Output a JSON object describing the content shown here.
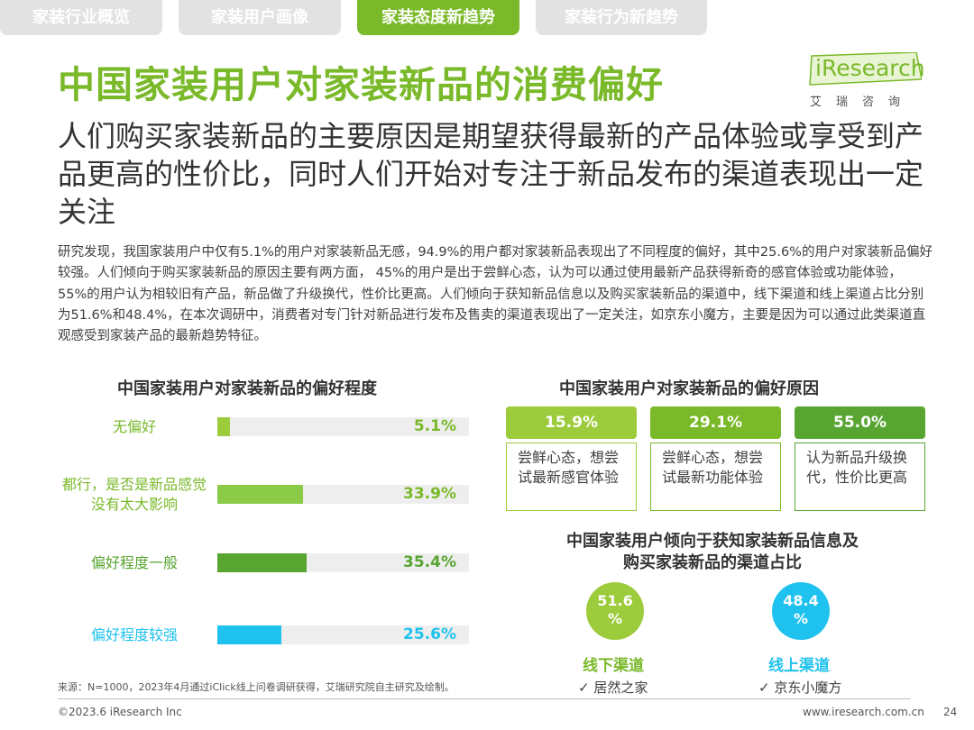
{
  "tabs": [
    {
      "label": "家装行业概览"
    },
    {
      "label": "家装用户画像"
    },
    {
      "label": "家装态度新趋势"
    },
    {
      "label": "家装行为新趋势"
    }
  ],
  "title": "中国家装用户对家装新品的消费偏好",
  "logo": {
    "brand": "iResearch",
    "sub": "艾瑞咨询"
  },
  "subtitle": "人们购买家装新品的主要原因是期望获得最新的产品体验或享受到产品更高的性价比，同时人们开始对专注于新品发布的渠道表现出一定关注",
  "body": "研究发现，我国家装用户中仅有5.1%的用户对家装新品无感，94.9%的用户都对家装新品表现出了不同程度的偏好，其中25.6%的用户对家装新品偏好较强。人们倾向于购买家装新品的原因主要有两方面， 45%的用户是出于尝鲜心态，认为可以通过使用最新产品获得新奇的感官体验或功能体验， 55%的用户认为相较旧有产品，新品做了升级换代，性价比更高。人们倾向于获知新品信息以及购买家装新品的渠道中，线下渠道和线上渠道占比分别为51.6%和48.4%，在本次调研中，消费者对专门针对新品进行发布及售卖的渠道表现出了一定关注，如京东小魔方，主要是因为可以通过此类渠道直观感受到家装产品的最新趋势特征。",
  "colors": {
    "green": "#7ab929",
    "dark_green": "#58a532",
    "lime": "#9ccb3b",
    "light_green": "#8ccb47",
    "cyan": "#1fc2ee",
    "tab_gray": "#e2e2e2"
  },
  "chart_data": [
    {
      "type": "bar",
      "title": "中国家装用户对家装新品的偏好程度",
      "categories": [
        "无偏好",
        "都行，是否是新品感觉没有太大影响",
        "偏好程度一般",
        "偏好程度较强"
      ],
      "values": [
        5.1,
        33.9,
        35.4,
        25.6
      ],
      "value_labels": [
        "5.1%",
        "33.9%",
        "35.4%",
        "25.6%"
      ],
      "colors": [
        "#9ccb3b",
        "#8ccb47",
        "#58a532",
        "#1fc2ee"
      ],
      "xlim": [
        0,
        100
      ]
    },
    {
      "type": "table",
      "title": "中国家装用户对家装新品的偏好原因",
      "items": [
        {
          "value": 15.9,
          "label": "15.9%",
          "text": "尝鲜心态，想尝试最新感官体验",
          "color": "#9ccb3b"
        },
        {
          "value": 29.1,
          "label": "29.1%",
          "text": "尝鲜心态，想尝试最新功能体验",
          "color": "#7ab929"
        },
        {
          "value": 55.0,
          "label": "55.0%",
          "text": "认为新品升级换代，性价比更高",
          "color": "#58a532"
        }
      ]
    },
    {
      "type": "pie",
      "title_line1": "中国家装用户倾向于获知家装新品信息及",
      "title_line2": "购买家装新品的渠道占比",
      "items": [
        {
          "value": 51.6,
          "label_line1": "51.6",
          "label_line2": "%",
          "name": "线下渠道",
          "example": "居然之家",
          "color": "#9ccb3b"
        },
        {
          "value": 48.4,
          "label_line1": "48.4",
          "label_line2": "%",
          "name": "线上渠道",
          "example": "京东小魔方",
          "color": "#1fc2ee"
        }
      ]
    }
  ],
  "source": "来源：N=1000，2023年4月通过iClick线上问卷调研获得，艾瑞研究院自主研究及绘制。",
  "footer": {
    "copyright": "©2023.6 iResearch Inc",
    "website": "www.iresearch.com.cn",
    "page": "24"
  },
  "check_mark": "✓"
}
